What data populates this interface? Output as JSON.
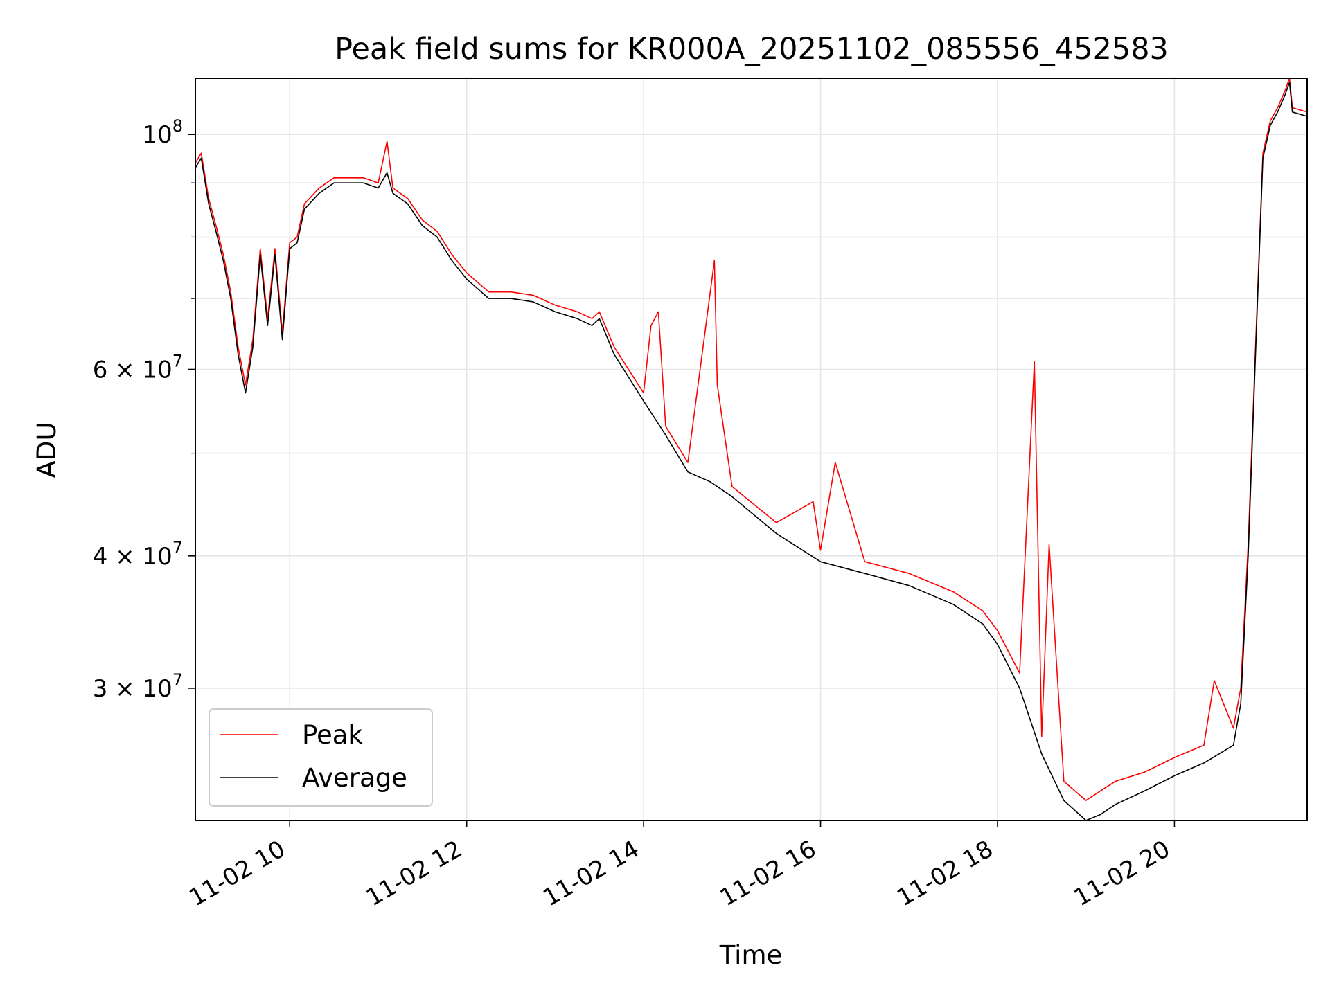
{
  "chart_data": {
    "type": "line",
    "title": "Peak field sums for KR000A_20251102_085556_452583",
    "xlabel": "Time",
    "ylabel": "ADU",
    "xlim": [
      "11-02 08:56",
      "11-02 21:30"
    ],
    "ylim": [
      22500000,
      113000000
    ],
    "yscale": "log",
    "grid": true,
    "legend_position": "lower-left",
    "x_ticks": [
      "11-02 10",
      "11-02 12",
      "11-02 14",
      "11-02 16",
      "11-02 18",
      "11-02 20"
    ],
    "y_ticks": [
      {
        "base": "10",
        "exp": "8",
        "mant": "",
        "value": 100000000
      },
      {
        "base": "10",
        "exp": "7",
        "mant": "6",
        "value": 60000000
      },
      {
        "base": "10",
        "exp": "7",
        "mant": "4",
        "value": 40000000
      },
      {
        "base": "10",
        "exp": "7",
        "mant": "3",
        "value": 30000000
      }
    ],
    "series": [
      {
        "name": "Average",
        "color": "#000000",
        "x": [
          "11-02 08:56",
          "11-02 09:00",
          "11-02 09:05",
          "11-02 09:10",
          "11-02 09:15",
          "11-02 09:20",
          "11-02 09:25",
          "11-02 09:30",
          "11-02 09:35",
          "11-02 09:40",
          "11-02 09:45",
          "11-02 09:50",
          "11-02 09:55",
          "11-02 10:00",
          "11-02 10:05",
          "11-02 10:10",
          "11-02 10:20",
          "11-02 10:30",
          "11-02 10:40",
          "11-02 10:50",
          "11-02 11:00",
          "11-02 11:06",
          "11-02 11:10",
          "11-02 11:20",
          "11-02 11:30",
          "11-02 11:40",
          "11-02 11:50",
          "11-02 12:00",
          "11-02 12:15",
          "11-02 12:30",
          "11-02 12:45",
          "11-02 13:00",
          "11-02 13:15",
          "11-02 13:25",
          "11-02 13:30",
          "11-02 13:40",
          "11-02 14:00",
          "11-02 14:15",
          "11-02 14:30",
          "11-02 14:45",
          "11-02 15:00",
          "11-02 15:30",
          "11-02 16:00",
          "11-02 16:30",
          "11-02 17:00",
          "11-02 17:30",
          "11-02 17:50",
          "11-02 18:00",
          "11-02 18:15",
          "11-02 18:30",
          "11-02 18:45",
          "11-02 19:00",
          "11-02 19:10",
          "11-02 19:20",
          "11-02 19:40",
          "11-02 20:00",
          "11-02 20:20",
          "11-02 20:40",
          "11-02 20:45",
          "11-02 20:50",
          "11-02 20:55",
          "11-02 21:00",
          "11-02 21:05",
          "11-02 21:10",
          "11-02 21:15",
          "11-02 21:18",
          "11-02 21:20",
          "11-02 21:30"
        ],
        "values": [
          93000000,
          95000000,
          86000000,
          81000000,
          76000000,
          70000000,
          62000000,
          57000000,
          63000000,
          77000000,
          66000000,
          77000000,
          64000000,
          78000000,
          79000000,
          85000000,
          88000000,
          90000000,
          90000000,
          90000000,
          89000000,
          92000000,
          88000000,
          86000000,
          82000000,
          80000000,
          76000000,
          73000000,
          70000000,
          70000000,
          69500000,
          68000000,
          67000000,
          66000000,
          67000000,
          62000000,
          56000000,
          52000000,
          48000000,
          47000000,
          45500000,
          42000000,
          39500000,
          38500000,
          37500000,
          36000000,
          34500000,
          33000000,
          30000000,
          26000000,
          23500000,
          22500000,
          22800000,
          23300000,
          24000000,
          24800000,
          25500000,
          26500000,
          29000000,
          40000000,
          62000000,
          95000000,
          102000000,
          105000000,
          109000000,
          112000000,
          105000000,
          104000000
        ]
      },
      {
        "name": "Peak",
        "color": "#ff0000",
        "x": [
          "11-02 08:56",
          "11-02 09:00",
          "11-02 09:05",
          "11-02 09:10",
          "11-02 09:15",
          "11-02 09:20",
          "11-02 09:25",
          "11-02 09:30",
          "11-02 09:35",
          "11-02 09:40",
          "11-02 09:45",
          "11-02 09:50",
          "11-02 09:55",
          "11-02 10:00",
          "11-02 10:05",
          "11-02 10:10",
          "11-02 10:20",
          "11-02 10:30",
          "11-02 10:40",
          "11-02 10:50",
          "11-02 11:00",
          "11-02 11:06",
          "11-02 11:10",
          "11-02 11:20",
          "11-02 11:30",
          "11-02 11:40",
          "11-02 11:50",
          "11-02 12:00",
          "11-02 12:15",
          "11-02 12:30",
          "11-02 12:45",
          "11-02 13:00",
          "11-02 13:15",
          "11-02 13:25",
          "11-02 13:30",
          "11-02 13:40",
          "11-02 14:00",
          "11-02 14:05",
          "11-02 14:10",
          "11-02 14:15",
          "11-02 14:30",
          "11-02 14:48",
          "11-02 14:50",
          "11-02 15:00",
          "11-02 15:30",
          "11-02 15:55",
          "11-02 16:00",
          "11-02 16:10",
          "11-02 16:30",
          "11-02 17:00",
          "11-02 17:30",
          "11-02 17:50",
          "11-02 18:00",
          "11-02 18:15",
          "11-02 18:25",
          "11-02 18:30",
          "11-02 18:35",
          "11-02 18:45",
          "11-02 19:00",
          "11-02 19:10",
          "11-02 19:20",
          "11-02 19:40",
          "11-02 20:00",
          "11-02 20:20",
          "11-02 20:27",
          "11-02 20:40",
          "11-02 20:45",
          "11-02 20:50",
          "11-02 20:55",
          "11-02 21:00",
          "11-02 21:05",
          "11-02 21:10",
          "11-02 21:15",
          "11-02 21:18",
          "11-02 21:20",
          "11-02 21:30"
        ],
        "values": [
          94000000,
          96000000,
          87000000,
          82000000,
          77000000,
          71000000,
          63000000,
          58000000,
          64000000,
          78000000,
          67000000,
          78000000,
          65000000,
          79000000,
          80000000,
          86000000,
          89000000,
          91000000,
          91000000,
          91000000,
          90000000,
          98500000,
          89000000,
          87000000,
          83000000,
          81000000,
          77000000,
          74000000,
          71000000,
          71000000,
          70500000,
          69000000,
          68000000,
          67000000,
          68000000,
          63000000,
          57000000,
          66000000,
          68000000,
          53000000,
          49000000,
          76000000,
          58000000,
          46500000,
          43000000,
          45000000,
          40500000,
          49000000,
          39500000,
          38500000,
          37000000,
          35500000,
          34000000,
          31000000,
          61000000,
          27000000,
          41000000,
          24500000,
          23500000,
          24000000,
          24500000,
          25000000,
          25800000,
          26500000,
          30500000,
          27500000,
          30000000,
          41000000,
          63000000,
          96000000,
          103000000,
          106000000,
          110000000,
          113000000,
          106000000,
          105000000
        ]
      }
    ]
  }
}
